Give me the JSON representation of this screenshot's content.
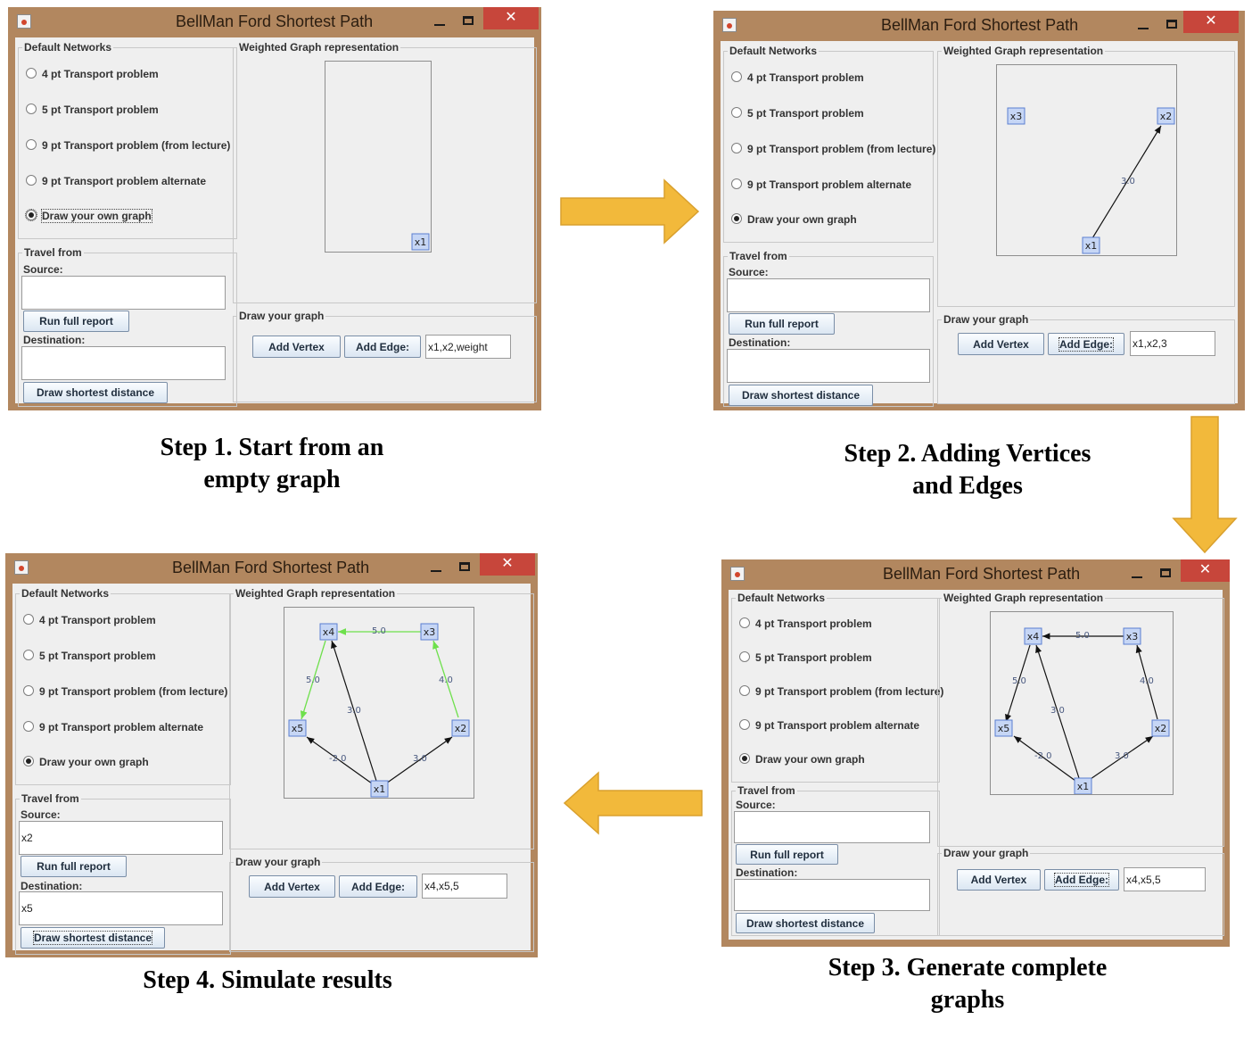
{
  "window_title": "BellMan Ford Shortest Path",
  "close_glyph": "✕",
  "groups": {
    "default_networks": "Default Networks",
    "weighted_graph": "Weighted Graph representation",
    "travel_from": "Travel from",
    "draw_your_graph": "Draw your graph"
  },
  "radio_options": [
    "4 pt Transport problem",
    "5 pt Transport problem",
    "9 pt Transport problem (from lecture)",
    "9 pt Transport problem alternate",
    "Draw your own graph"
  ],
  "labels": {
    "source": "Source:",
    "destination": "Destination:"
  },
  "buttons": {
    "run_full_report": "Run full report",
    "draw_shortest_distance": "Draw shortest distance",
    "add_vertex": "Add Vertex",
    "add_edge": "Add Edge:"
  },
  "vertices": [
    "x1",
    "x2",
    "x3",
    "x4",
    "x5"
  ],
  "edge_weights": {
    "x1_x2": "3.0",
    "x1_x4": "3.0",
    "x1_x5": "-2.0",
    "x2_x3": "4.0",
    "x3_x4": "5.0",
    "x4_x5": "5.0"
  },
  "steps": [
    {
      "caption_line1": "Step 1. Start from an",
      "caption_line2": "empty graph",
      "edge_input": "x1,x2,weight",
      "source_value": "",
      "destination_value": ""
    },
    {
      "caption_line1": "Step 2. Adding Vertices",
      "caption_line2": "and Edges",
      "edge_input": "x1,x2,3",
      "source_value": "",
      "destination_value": ""
    },
    {
      "caption_line1": "Step 3. Generate complete",
      "caption_line2": "graphs",
      "edge_input": "x4,x5,5",
      "source_value": "",
      "destination_value": ""
    },
    {
      "caption_line1": "Step 4. Simulate results",
      "caption_line2": "",
      "edge_input": "x4,x5,5",
      "source_value": "x2",
      "destination_value": "x5"
    }
  ],
  "colors": {
    "window_frame": "#b2875f",
    "close_button": "#c7463b",
    "flow_arrow": "#f2b93b",
    "highlight_path": "#6ee04c",
    "vertex_fill": "#c6d6f5",
    "vertex_border": "#5b7fd1",
    "edge_label": "#4a5a80"
  },
  "flow_arrows": [
    "right-arrow-icon",
    "down-arrow-icon",
    "left-arrow-icon"
  ]
}
